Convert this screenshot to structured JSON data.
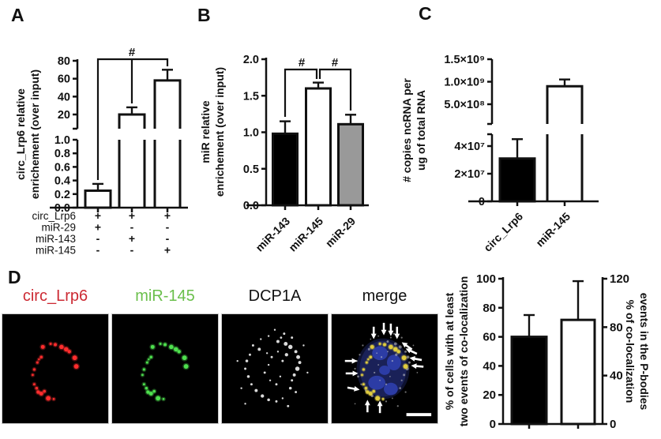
{
  "panels": {
    "a": "A",
    "b": "B",
    "c": "C",
    "d": "D"
  },
  "chart_data": [
    {
      "id": "A",
      "type": "bar",
      "broken_axis": true,
      "ylabel_lines": [
        "circ_Lrp6 relative",
        "enrichement (over input)"
      ],
      "upper_ticks": [
        "20",
        "40",
        "60",
        "80"
      ],
      "lower_ticks": [
        "0.0",
        "0.2",
        "0.4",
        "0.6",
        "0.8",
        "1.0"
      ],
      "upper_range": [
        20,
        80
      ],
      "lower_range": [
        0,
        1.0
      ],
      "bars": [
        {
          "condition": "circ_Lrp6 + miR-29",
          "value": 0.25,
          "error": 0.1,
          "fill": "#ffffff"
        },
        {
          "condition": "circ_Lrp6 + miR-143",
          "value": 20,
          "error": 8,
          "fill": "#ffffff"
        },
        {
          "condition": "circ_Lrp6 + miR-145",
          "value": 58,
          "error": 12,
          "fill": "#ffffff"
        }
      ],
      "significance_label": "#",
      "condition_rows": [
        {
          "label": "circ_Lrp6",
          "values": [
            "+",
            "+",
            "+"
          ]
        },
        {
          "label": "miR-29",
          "values": [
            "+",
            "-",
            "-"
          ]
        },
        {
          "label": "miR-143",
          "values": [
            "-",
            "+",
            "-"
          ]
        },
        {
          "label": "miR-145",
          "values": [
            "-",
            "-",
            "+"
          ]
        }
      ]
    },
    {
      "id": "B",
      "type": "bar",
      "ylabel_lines": [
        "miR relative",
        "enrichement (over input)"
      ],
      "yticks": [
        "0.0",
        "0.5",
        "1.0",
        "1.5",
        "2.0"
      ],
      "ylim": [
        0,
        2.0
      ],
      "categories": [
        "miR-143",
        "miR-145",
        "miR-29"
      ],
      "bars": [
        {
          "value": 0.98,
          "error": 0.17,
          "fill": "#000000"
        },
        {
          "value": 1.6,
          "error": 0.08,
          "fill": "#ffffff"
        },
        {
          "value": 1.11,
          "error": 0.13,
          "fill": "#999999"
        }
      ],
      "significance": [
        {
          "label": "#",
          "between": [
            "miR-143",
            "miR-145"
          ]
        },
        {
          "label": "#",
          "between": [
            "miR-145",
            "miR-29"
          ]
        }
      ]
    },
    {
      "id": "C",
      "type": "bar",
      "broken_axis": true,
      "ylabel_lines": [
        "# copies ncRNA per",
        "ug of total RNA"
      ],
      "upper_ticks": [
        "5.0×10⁸",
        "1.0×10⁹",
        "1.5×10⁹"
      ],
      "lower_ticks": [
        "0",
        "2×10⁷",
        "4×10⁷"
      ],
      "categories": [
        "circ_Lrp6",
        "miR-145"
      ],
      "bars": [
        {
          "value": 31000000.0,
          "error": 14000000.0,
          "fill": "#000000"
        },
        {
          "value": 900000000.0,
          "error": 150000000.0,
          "fill": "#ffffff"
        }
      ]
    },
    {
      "id": "D",
      "type": "bar",
      "dual_axis": true,
      "left_ylabel_lines": [
        "% of cells with at least",
        "two events of co-localization"
      ],
      "right_ylabel_lines": [
        "% of co-localization",
        "events in the P-bodies"
      ],
      "left_ticks": [
        "0",
        "20",
        "40",
        "60",
        "80",
        "100"
      ],
      "left_lim": [
        0,
        100
      ],
      "right_ticks": [
        "0",
        "40",
        "80",
        "120"
      ],
      "right_lim": [
        0,
        120
      ],
      "bars": [
        {
          "value": 60,
          "error": 15,
          "axis": "left",
          "fill": "#000000"
        },
        {
          "value": 86,
          "error": 32,
          "axis": "right",
          "fill": "#ffffff"
        }
      ]
    }
  ],
  "microscopy": {
    "tiles": [
      {
        "name": "circ_Lrp6",
        "label_color": "#cc2a33",
        "type": "ring",
        "dot_color": "#ff2d2d"
      },
      {
        "name": "miR-145",
        "label_color": "#6abf4b",
        "type": "ring",
        "dot_color": "#4ee04e"
      },
      {
        "name": "DCP1A",
        "label_color": "#111111",
        "type": "scatter",
        "dot_color": "#f2f2f2"
      },
      {
        "name": "merge",
        "label_color": "#111111",
        "type": "merge",
        "dot_color": "#e0cc3e"
      }
    ],
    "ring_dots": [
      [
        52,
        42,
        2.5
      ],
      [
        62,
        38,
        1.5
      ],
      [
        68,
        39,
        2
      ],
      [
        76,
        42,
        2.8
      ],
      [
        82,
        45,
        2.8
      ],
      [
        86,
        48,
        2.2
      ],
      [
        93,
        56,
        3
      ],
      [
        95,
        67,
        3
      ],
      [
        50,
        55,
        1.8
      ],
      [
        45,
        62,
        1.5
      ],
      [
        47,
        58,
        1.2
      ],
      [
        41,
        71,
        1.6
      ],
      [
        39,
        78,
        1.4
      ],
      [
        41,
        90,
        1.5
      ],
      [
        44,
        95,
        1.8
      ],
      [
        46,
        100,
        2.2
      ],
      [
        50,
        102,
        2.5
      ],
      [
        54,
        99,
        1.8
      ],
      [
        59,
        108,
        3
      ],
      [
        66,
        109,
        1.4
      ]
    ],
    "scatter_dots": [
      [
        68,
        20,
        1.2
      ],
      [
        80,
        25,
        1.5
      ],
      [
        60,
        28,
        1.2
      ],
      [
        90,
        30,
        1.5
      ],
      [
        50,
        32,
        1.2
      ],
      [
        72,
        35,
        2
      ],
      [
        82,
        38,
        2.5
      ],
      [
        88,
        42,
        2.8
      ],
      [
        95,
        48,
        2
      ],
      [
        98,
        55,
        2.5
      ],
      [
        100,
        62,
        2
      ],
      [
        97,
        70,
        2.8
      ],
      [
        93,
        78,
        2
      ],
      [
        90,
        85,
        1.5
      ],
      [
        40,
        40,
        1.5
      ],
      [
        48,
        45,
        2
      ],
      [
        36,
        52,
        1.5
      ],
      [
        32,
        60,
        1.8
      ],
      [
        30,
        70,
        1.5
      ],
      [
        34,
        80,
        1.8
      ],
      [
        38,
        90,
        1.5
      ],
      [
        44,
        98,
        2
      ],
      [
        52,
        105,
        2.2
      ],
      [
        60,
        110,
        1.8
      ],
      [
        70,
        112,
        1.5
      ],
      [
        78,
        108,
        1.2
      ],
      [
        58,
        50,
        1.2
      ],
      [
        64,
        55,
        1.5
      ],
      [
        60,
        65,
        1.2
      ],
      [
        55,
        75,
        1.5
      ],
      [
        62,
        85,
        1.2
      ],
      [
        70,
        90,
        1.5
      ],
      [
        75,
        80,
        1.2
      ],
      [
        78,
        60,
        1.5
      ],
      [
        72,
        48,
        1.2
      ],
      [
        25,
        95,
        1.2
      ],
      [
        20,
        60,
        1.2
      ],
      [
        105,
        40,
        1.2
      ],
      [
        110,
        75,
        1.2
      ],
      [
        85,
        118,
        1.5
      ],
      [
        30,
        115,
        1.2
      ],
      [
        95,
        100,
        1.5
      ],
      [
        88,
        95,
        1.8
      ],
      [
        83,
        52,
        2.2
      ],
      [
        76,
        30,
        1.4
      ]
    ],
    "nucleus": {
      "base": [
        66,
        70,
        30,
        36
      ],
      "base_color": "#1a2158",
      "blobs": [
        [
          62,
          50,
          10,
          9
        ],
        [
          80,
          62,
          9,
          10
        ],
        [
          58,
          88,
          11,
          9
        ],
        [
          76,
          96,
          9,
          8
        ],
        [
          68,
          72,
          7,
          6
        ]
      ],
      "blob_color": "#2f3fae"
    },
    "arrows": [
      [
        54,
        32,
        90
      ],
      [
        67,
        27,
        90
      ],
      [
        76,
        28,
        90
      ],
      [
        84,
        32,
        90
      ],
      [
        90,
        36,
        215
      ],
      [
        95,
        44,
        205
      ],
      [
        100,
        56,
        190
      ],
      [
        102,
        66,
        185
      ],
      [
        33,
        60,
        0
      ],
      [
        34,
        76,
        0
      ],
      [
        36,
        97,
        10
      ],
      [
        46,
        110,
        270
      ],
      [
        62,
        111,
        270
      ]
    ],
    "scalebar": {
      "x": 96,
      "y": 127,
      "w": 32,
      "h": 4
    }
  }
}
